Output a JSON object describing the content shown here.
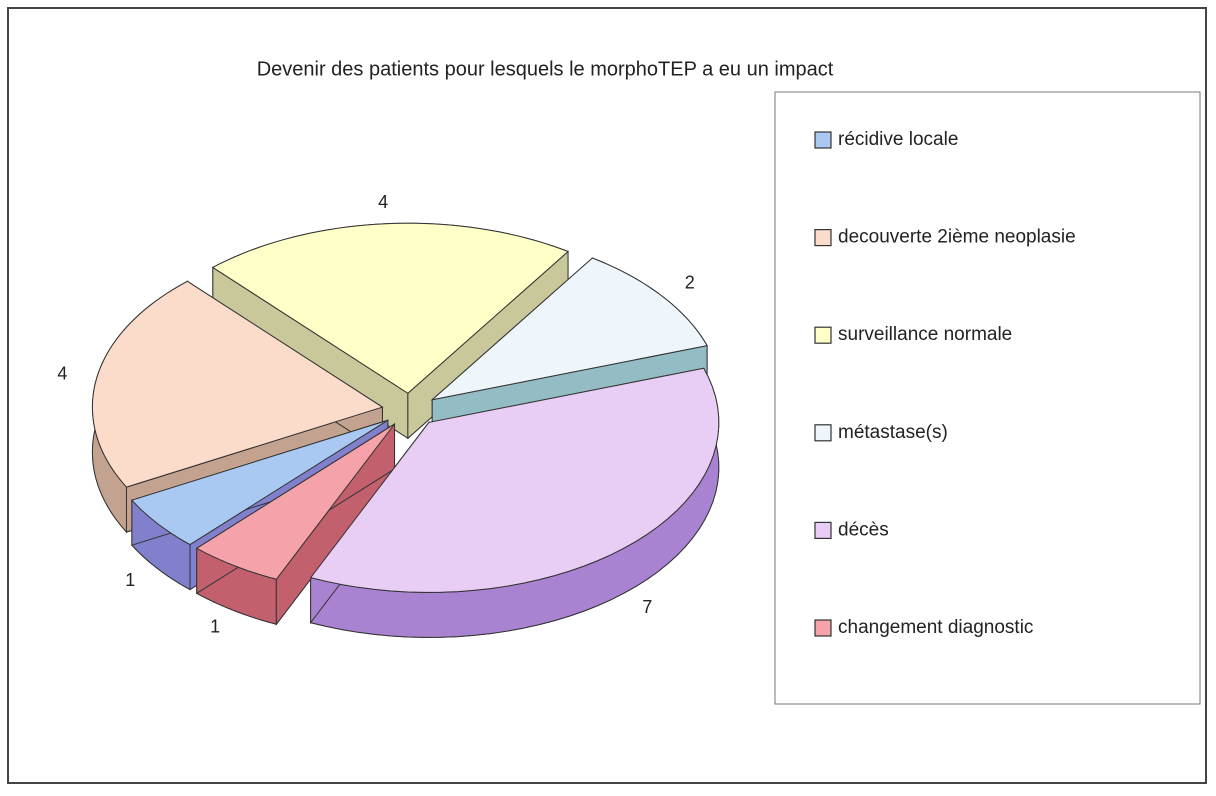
{
  "chart_data": {
    "type": "pie",
    "title": "Devenir des patients pour lesquels le morphoTEP a eu un impact",
    "categories": [
      "récidive locale",
      "decouverte 2ième neoplasie",
      "surveillance normale",
      "métastase(s)",
      "décès",
      "changement diagnostic"
    ],
    "values": [
      1,
      4,
      4,
      2,
      7,
      1
    ],
    "colors": [
      "#a9c9f2",
      "#fbdccb",
      "#ffffc8",
      "#eef6fc",
      "#e8cdf4",
      "#f5a2aa"
    ],
    "side_colors": [
      "#8080cc",
      "#c4a290",
      "#c8c89a",
      "#94bcc4",
      "#a983d2",
      "#c2606e"
    ],
    "legend": "right"
  }
}
